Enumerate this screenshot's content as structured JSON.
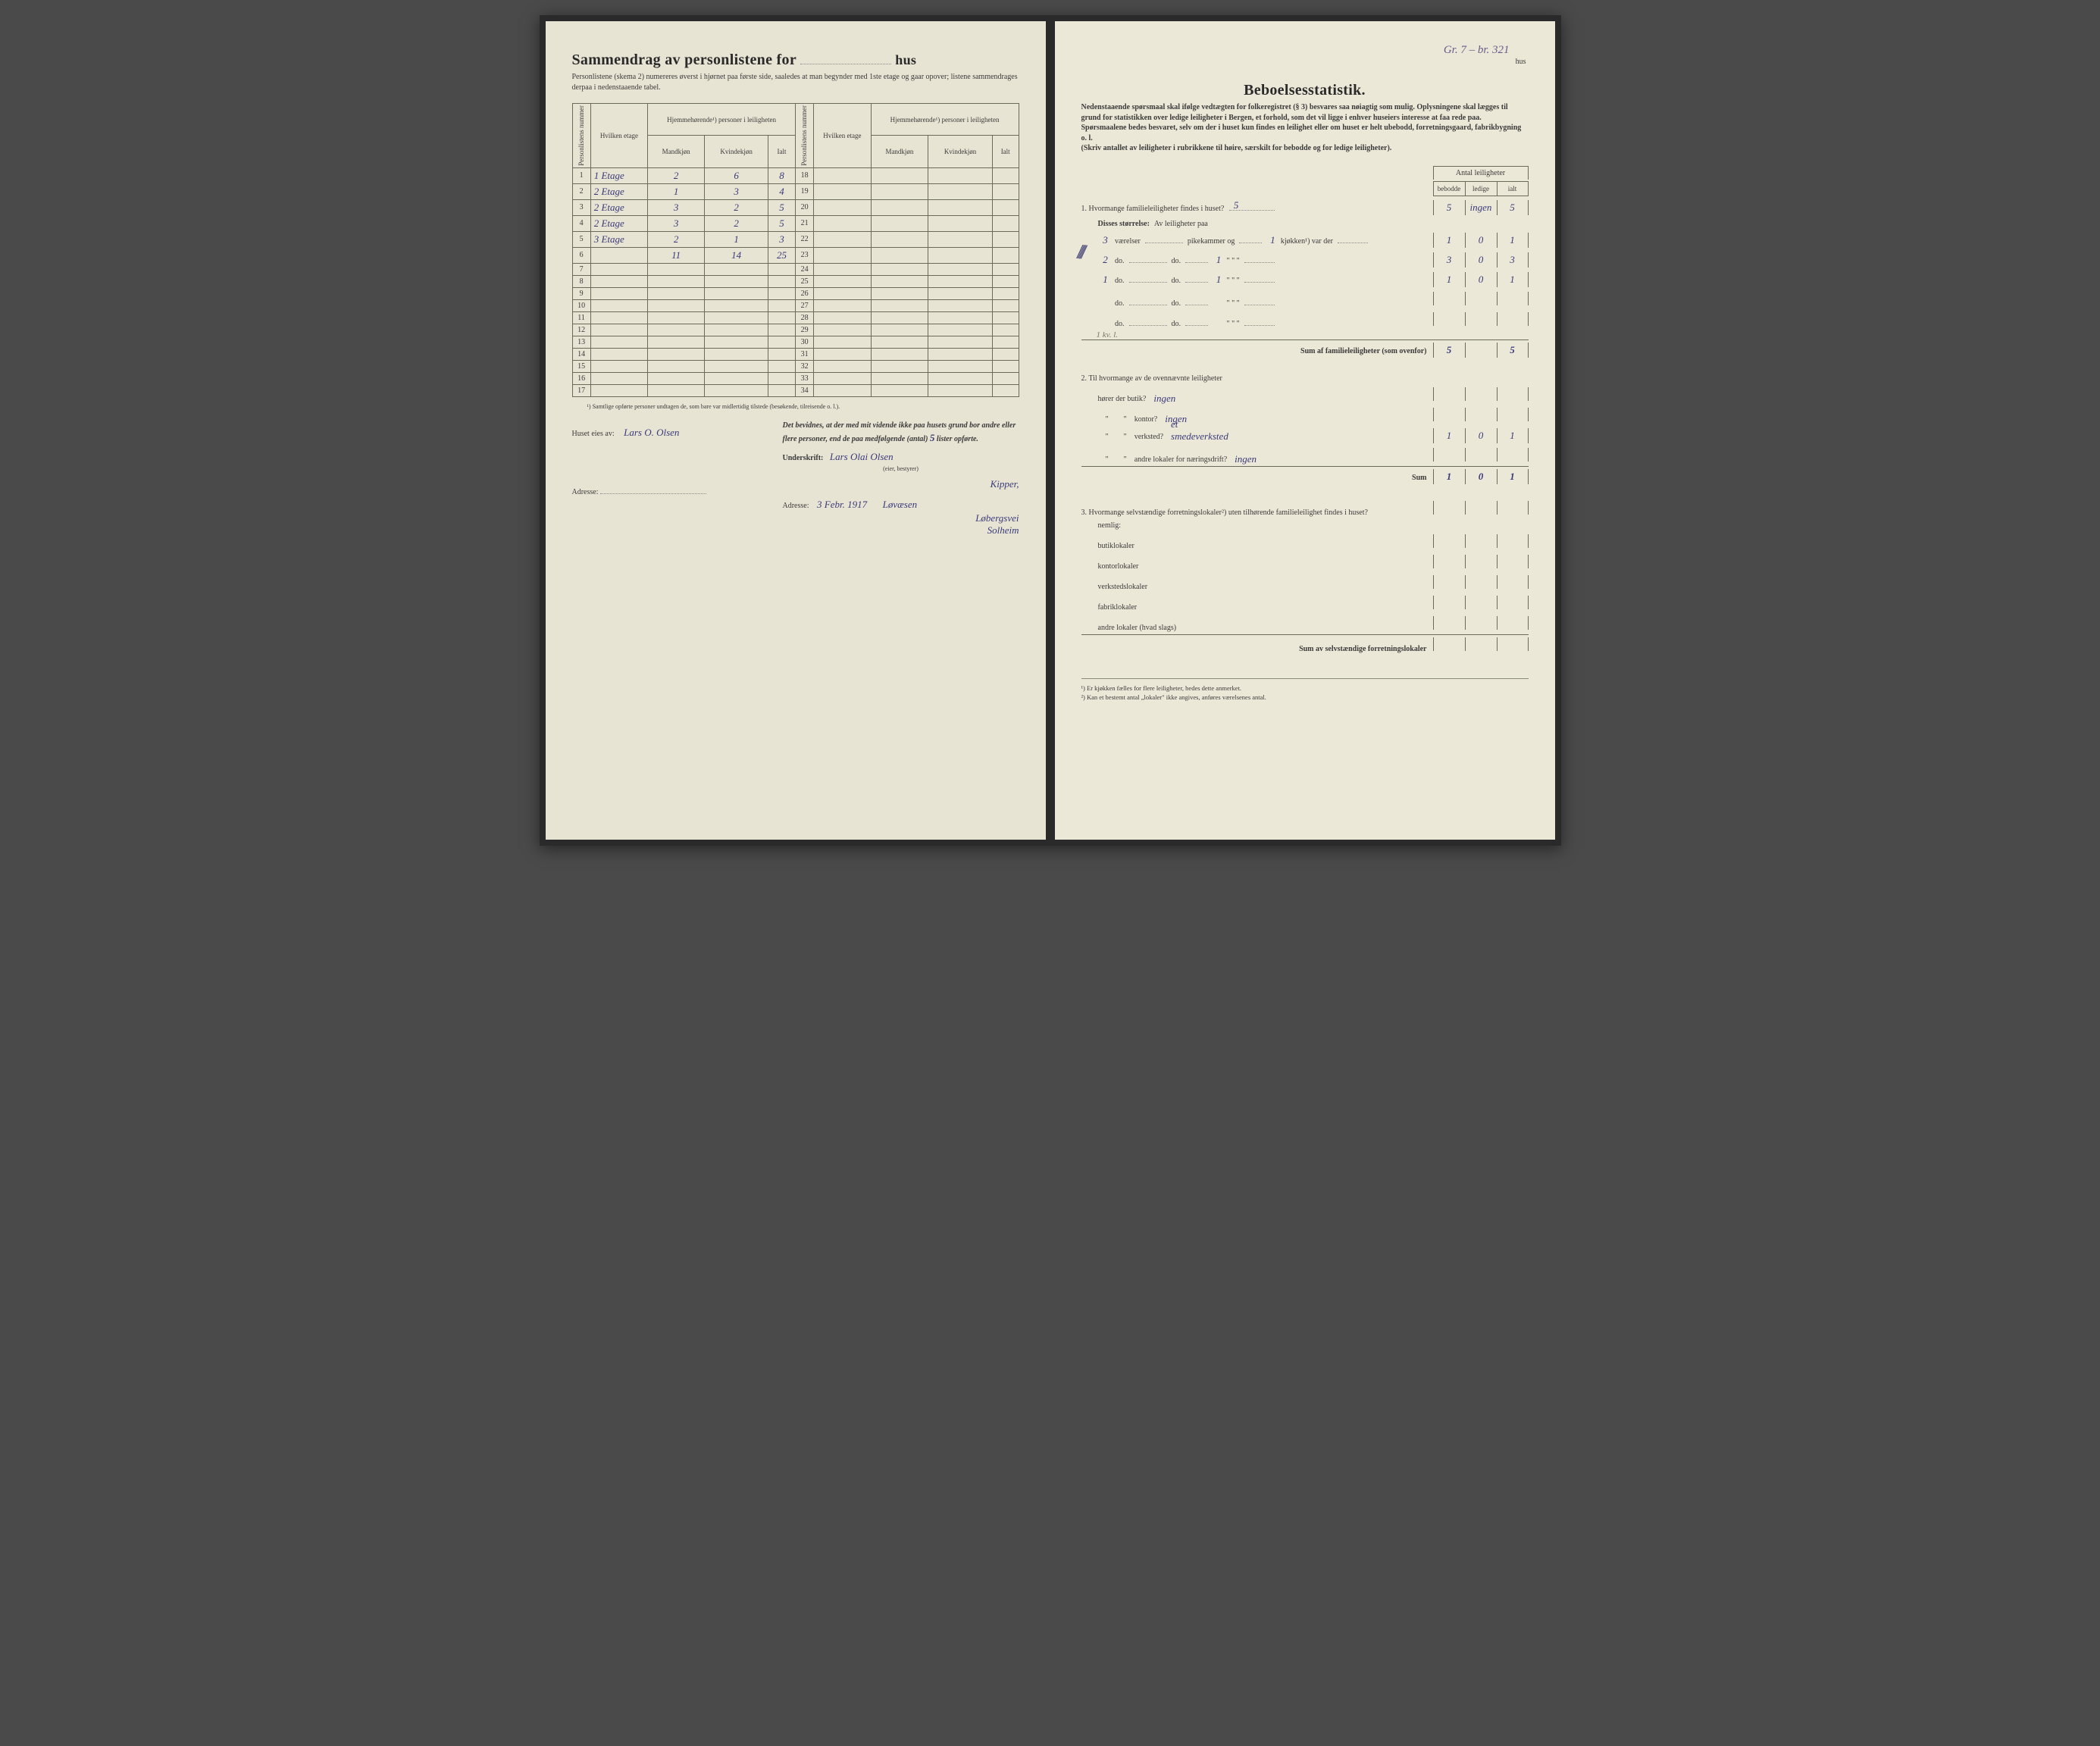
{
  "left": {
    "title_prefix": "Sammendrag av personlistene for",
    "title_blank": "",
    "title_suffix": "hus",
    "subtitle": "Personlistene (skema 2) numereres øverst i hjørnet paa første side, saaledes at man begynder med 1ste etage og gaar opover; listene sammendrages derpaa i nedenstaaende tabel.",
    "table": {
      "h_personlist": "Personlistens nummer",
      "h_etage": "Hvilken etage",
      "h_hjemme": "Hjemmehørende¹) personer i leiligheten",
      "h_mand": "Mandkjøn",
      "h_kvin": "Kvindekjøn",
      "h_ialt": "Ialt",
      "rows_left": [
        {
          "n": "1",
          "etage": "1 Etage",
          "m": "2",
          "k": "6",
          "t": "8"
        },
        {
          "n": "2",
          "etage": "2 Etage",
          "m": "1",
          "k": "3",
          "t": "4"
        },
        {
          "n": "3",
          "etage": "2 Etage",
          "m": "3",
          "k": "2",
          "t": "5"
        },
        {
          "n": "4",
          "etage": "2 Etage",
          "m": "3",
          "k": "2",
          "t": "5"
        },
        {
          "n": "5",
          "etage": "3 Etage",
          "m": "2",
          "k": "1",
          "t": "3"
        },
        {
          "n": "6",
          "etage": "",
          "m": "11",
          "k": "14",
          "t": "25"
        },
        {
          "n": "7",
          "etage": "",
          "m": "",
          "k": "",
          "t": ""
        },
        {
          "n": "8",
          "etage": "",
          "m": "",
          "k": "",
          "t": ""
        },
        {
          "n": "9",
          "etage": "",
          "m": "",
          "k": "",
          "t": ""
        },
        {
          "n": "10",
          "etage": "",
          "m": "",
          "k": "",
          "t": ""
        },
        {
          "n": "11",
          "etage": "",
          "m": "",
          "k": "",
          "t": ""
        },
        {
          "n": "12",
          "etage": "",
          "m": "",
          "k": "",
          "t": ""
        },
        {
          "n": "13",
          "etage": "",
          "m": "",
          "k": "",
          "t": ""
        },
        {
          "n": "14",
          "etage": "",
          "m": "",
          "k": "",
          "t": ""
        },
        {
          "n": "15",
          "etage": "",
          "m": "",
          "k": "",
          "t": ""
        },
        {
          "n": "16",
          "etage": "",
          "m": "",
          "k": "",
          "t": ""
        },
        {
          "n": "17",
          "etage": "",
          "m": "",
          "k": "",
          "t": ""
        }
      ],
      "rows_right_start": 18,
      "rows_right_end": 34
    },
    "footnote": "¹) Samtlige opførte personer undtagen de, som bare var midlertidig tilstede (besøkende, tilreisende o. l.).",
    "owner_label": "Huset eies av:",
    "owner_value": "Lars O. Olsen",
    "adresse_label": "Adresse:",
    "attest_text": "Det bevidnes, at der med mit vidende ikke paa husets grund bor andre eller flere personer, end de paa medfølgende (antal)",
    "attest_count": "5",
    "attest_suffix": "lister opførte.",
    "underskrift_label": "Underskrift:",
    "signature": "Lars Olai Olsen",
    "sig_sub": "(eier, bestyrer)",
    "sig_line2": "Kipper,",
    "date": "3 Febr. 1917",
    "addr2": "Løvæsen",
    "addr3": "Løbergsvei",
    "addr4": "Solheim"
  },
  "right": {
    "corner": "Gr. 7 – br. 321",
    "hus_label": "hus",
    "title": "Beboelsesstatistik.",
    "intro1": "Nedenstaaende spørsmaal skal ifølge vedtægten for folkeregistret (§ 3) besvares saa nøiagtig som mulig. Oplysningene skal lægges til grund for statistikken over ledige leiligheter i Bergen, et forhold, som det vil ligge i enhver huseiers interesse at faa rede paa.",
    "intro2": "Spørsmaalene bedes besvaret, selv om der i huset kun findes en leilighet eller om huset er helt ubebodd, forretningsgaard, fabrikbygning o. l.",
    "intro3": "(Skriv antallet av leiligheter i rubrikkene til høire, særskilt for bebodde og for ledige leiligheter).",
    "antal_head": "Antal leiligheter",
    "col_bebodde": "bebodde",
    "col_ledige": "ledige",
    "col_ialt": "ialt",
    "q1": {
      "label": "1. Hvormange familieleiligheter findes i huset?",
      "value": "5",
      "cells": [
        "5",
        "ingen",
        "5"
      ],
      "disses": "Disses størrelse:",
      "disses_sub": "Av leiligheter paa",
      "rows": [
        {
          "vaer": "3",
          "pike": "",
          "kjok": "1",
          "cells": [
            "1",
            "0",
            "1"
          ]
        },
        {
          "vaer": "2",
          "pike": "",
          "kjok": "1",
          "cells": [
            "3",
            "0",
            "3"
          ]
        },
        {
          "vaer": "1",
          "pike": "",
          "kjok": "1",
          "cells": [
            "1",
            "0",
            "1"
          ]
        },
        {
          "vaer": "",
          "pike": "",
          "kjok": "",
          "cells": [
            "",
            "",
            ""
          ]
        },
        {
          "vaer": "",
          "pike": "",
          "kjok": "",
          "cells": [
            "",
            "",
            ""
          ]
        }
      ],
      "vaer_label": "værelser",
      "pike_label": "pikekammer og",
      "kjok_label": "kjøkken¹) var der",
      "do": "do.",
      "annot": "1 kv. l.",
      "sum_label": "Sum af familieleiligheter (som ovenfor)",
      "sum_cells": [
        "5",
        "",
        "5"
      ]
    },
    "q2": {
      "label": "2. Til hvormange av de ovennævnte leiligheter",
      "lines": [
        {
          "k": "hører der butik?",
          "v": "ingen",
          "cells": [
            "",
            "",
            ""
          ]
        },
        {
          "k": "kontor?",
          "v": "ingen",
          "cells": [
            "",
            "",
            ""
          ]
        },
        {
          "k": "verksted?",
          "v": "et smedeverksted",
          "cells": [
            "1",
            "0",
            "1"
          ]
        },
        {
          "k": "andre lokaler for næringsdrift?",
          "v": "ingen",
          "cells": [
            "",
            "",
            ""
          ]
        }
      ],
      "sum_label": "Sum",
      "sum_cells": [
        "1",
        "0",
        "1"
      ]
    },
    "q3": {
      "label": "3. Hvormange selvstændige forretningslokaler²) uten tilhørende familieleilighet findes i huset?",
      "nemlig": "nemlig:",
      "lines": [
        "butiklokaler",
        "kontorlokaler",
        "verkstedslokaler",
        "fabriklokaler",
        "andre lokaler (hvad slags)"
      ],
      "sum_label": "Sum av selvstændige forretningslokaler"
    },
    "fn1": "¹) Er kjøkken fælles for flere leiligheter, bedes dette anmerket.",
    "fn2": "²) Kan et bestemt antal „lokaler\" ikke angives, anføres værelsenes antal."
  },
  "colors": {
    "paper": "#e8e4d4",
    "ink": "#3a3a3a",
    "handwriting": "#3a3a7a",
    "line": "#6a6a5a"
  }
}
